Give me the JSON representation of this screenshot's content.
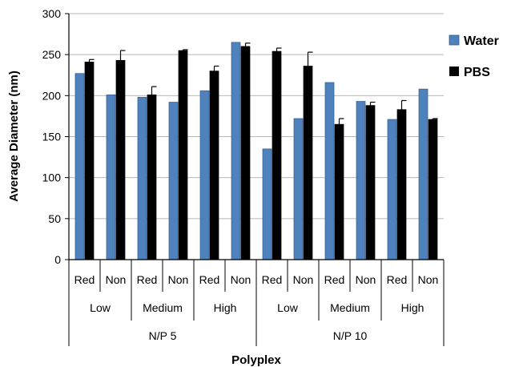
{
  "chart_data": {
    "type": "bar",
    "ylabel": "Average Diameter (nm)",
    "xlabel": "Polyplex",
    "ylim": [
      0,
      300
    ],
    "yticks": [
      0,
      50,
      100,
      150,
      200,
      250,
      300
    ],
    "grid": true,
    "legend_position": "right",
    "groups": [
      {
        "label": "N/P 5",
        "subgroups": [
          {
            "label": "Low",
            "categories": [
              "Red",
              "Non"
            ]
          },
          {
            "label": "Medium",
            "categories": [
              "Red",
              "Non"
            ]
          },
          {
            "label": "High",
            "categories": [
              "Red",
              "Non"
            ]
          }
        ]
      },
      {
        "label": "N/P 10",
        "subgroups": [
          {
            "label": "Low",
            "categories": [
              "Red",
              "Non"
            ]
          },
          {
            "label": "Medium",
            "categories": [
              "Red",
              "Non"
            ]
          },
          {
            "label": "High",
            "categories": [
              "Red",
              "Non"
            ]
          }
        ]
      }
    ],
    "series": [
      {
        "name": "Water",
        "color": "#4F81BD",
        "values": [
          227,
          201,
          198,
          192,
          206,
          265,
          135,
          172,
          216,
          193,
          171,
          208
        ],
        "errors": [
          0,
          0,
          0,
          0,
          0,
          0,
          0,
          0,
          0,
          0,
          0,
          0
        ]
      },
      {
        "name": "PBS",
        "color": "#000000",
        "values": [
          241,
          243,
          201,
          255,
          230,
          260,
          254,
          236,
          165,
          188,
          183,
          171
        ],
        "errors": [
          3,
          12,
          10,
          1,
          6,
          4,
          4,
          17,
          7,
          4,
          11,
          1
        ]
      }
    ]
  }
}
